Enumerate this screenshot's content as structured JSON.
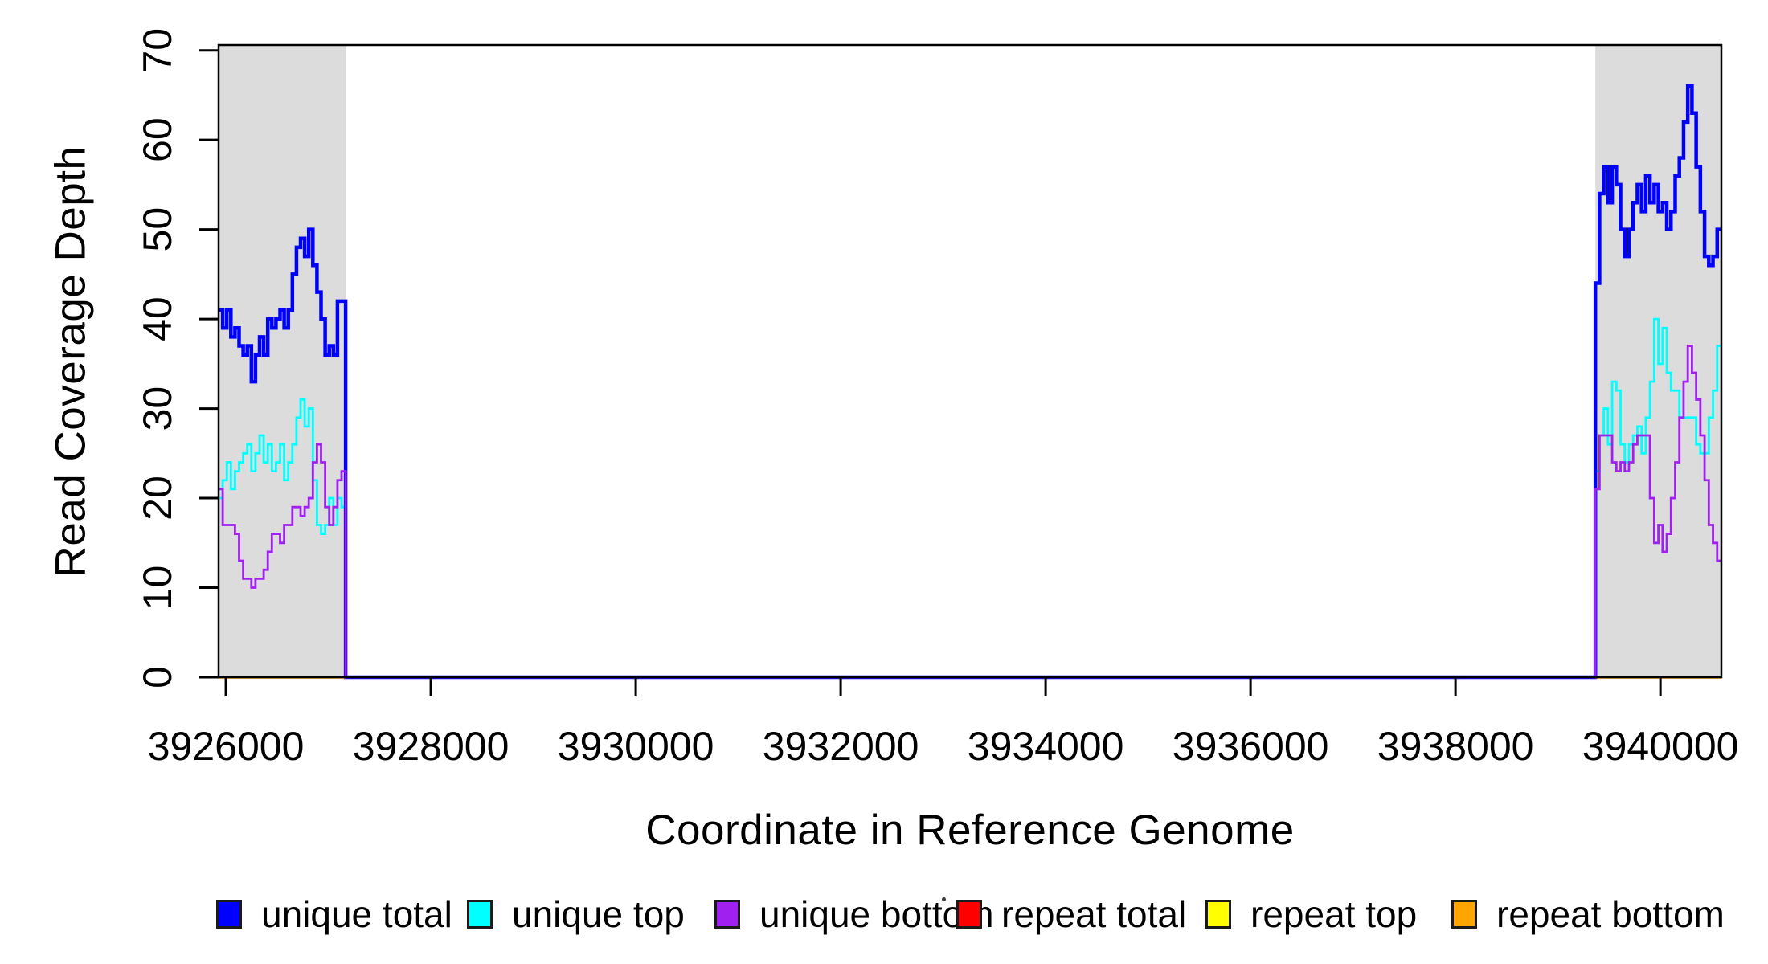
{
  "figure": {
    "background": "#FFFFFF"
  },
  "chart_data": {
    "type": "line",
    "step": true,
    "title": "",
    "xlabel": "Coordinate in Reference Genome",
    "ylabel": "Read Coverage Depth",
    "xlim": [
      3925929,
      3940595
    ],
    "ylim": [
      0,
      70.6
    ],
    "x_ticks": [
      3926000,
      3928000,
      3930000,
      3932000,
      3934000,
      3936000,
      3938000,
      3940000
    ],
    "y_ticks": [
      0,
      10,
      20,
      30,
      40,
      50,
      60,
      70
    ],
    "grid": false,
    "frame_color": "#000000",
    "band_color": "#DCDCDC",
    "shaded_regions": [
      {
        "x0": 3925929,
        "x1": 3927169
      },
      {
        "x0": 3939365,
        "x1": 3940595
      }
    ],
    "gap_note": "all series are zero between the two shaded regions; repeat series exist only inside shaded regions",
    "series": [
      {
        "name": "unique total",
        "color": "#0000FF",
        "line_width": 4.5,
        "band1_values": [
          41,
          39,
          41,
          38,
          39,
          37,
          36,
          37,
          33,
          36,
          38,
          36,
          40,
          39,
          40,
          41,
          39,
          41,
          45,
          48,
          49,
          47,
          50,
          46,
          43,
          40,
          36,
          37,
          36,
          42,
          42
        ],
        "band2_values": [
          44,
          54,
          57,
          53,
          57,
          55,
          50,
          47,
          50,
          53,
          55,
          52,
          56,
          53,
          55,
          52,
          53,
          50,
          52,
          56,
          58,
          62,
          66,
          63,
          57,
          52,
          47,
          46,
          47,
          50
        ],
        "zero_between_bands": true
      },
      {
        "name": "unique top",
        "color": "#00FFFF",
        "line_width": 2.8,
        "band1_values": [
          20,
          22,
          24,
          21,
          23,
          24,
          25,
          26,
          23,
          25,
          27,
          24,
          26,
          23,
          24,
          26,
          22,
          24,
          26,
          29,
          31,
          28,
          30,
          22,
          17,
          16,
          17,
          20,
          17,
          20,
          19
        ],
        "band2_values": [
          23,
          27,
          30,
          26,
          33,
          32,
          26,
          24,
          26,
          27,
          28,
          25,
          29,
          33,
          40,
          35,
          39,
          34,
          32,
          32,
          29,
          29,
          29,
          29,
          26,
          25,
          25,
          29,
          32,
          37
        ],
        "zero_between_bands": true
      },
      {
        "name": "unique bottom",
        "color": "#A020F0",
        "line_width": 2.8,
        "band1_values": [
          21,
          17,
          17,
          17,
          16,
          13,
          11,
          11,
          10,
          11,
          11,
          12,
          14,
          16,
          16,
          15,
          17,
          17,
          19,
          19,
          18,
          19,
          20,
          24,
          26,
          24,
          19,
          17,
          19,
          22,
          23
        ],
        "band2_values": [
          21,
          27,
          27,
          27,
          24,
          23,
          24,
          23,
          24,
          26,
          27,
          27,
          27,
          20,
          15,
          17,
          14,
          16,
          20,
          24,
          29,
          33,
          37,
          34,
          31,
          27,
          22,
          17,
          15,
          13
        ],
        "zero_between_bands": true
      },
      {
        "name": "repeat total",
        "color": "#FF0000",
        "line_width": 3.2,
        "constant_value": 0,
        "bands_only": true
      },
      {
        "name": "repeat top",
        "color": "#FFFF00",
        "line_width": 3.2,
        "constant_value": 0,
        "bands_only": true
      },
      {
        "name": "repeat bottom",
        "color": "#FFA500",
        "line_width": 3.2,
        "constant_value": 0,
        "bands_only": true
      }
    ],
    "draw_order": [
      "repeat total",
      "repeat top",
      "unique top",
      "unique total",
      "unique bottom",
      "repeat bottom"
    ],
    "legend": {
      "position": "bottom",
      "items": [
        {
          "label": "unique total",
          "color": "#0000FF"
        },
        {
          "label": "unique top",
          "color": "#00FFFF"
        },
        {
          "label": "unique bottom",
          "color": "#A020F0"
        },
        {
          "label": "repeat total",
          "color": "#FF0000"
        },
        {
          "label": "repeat top",
          "color": "#FFFF00"
        },
        {
          "label": "repeat bottom",
          "color": "#FFA500"
        }
      ]
    }
  }
}
